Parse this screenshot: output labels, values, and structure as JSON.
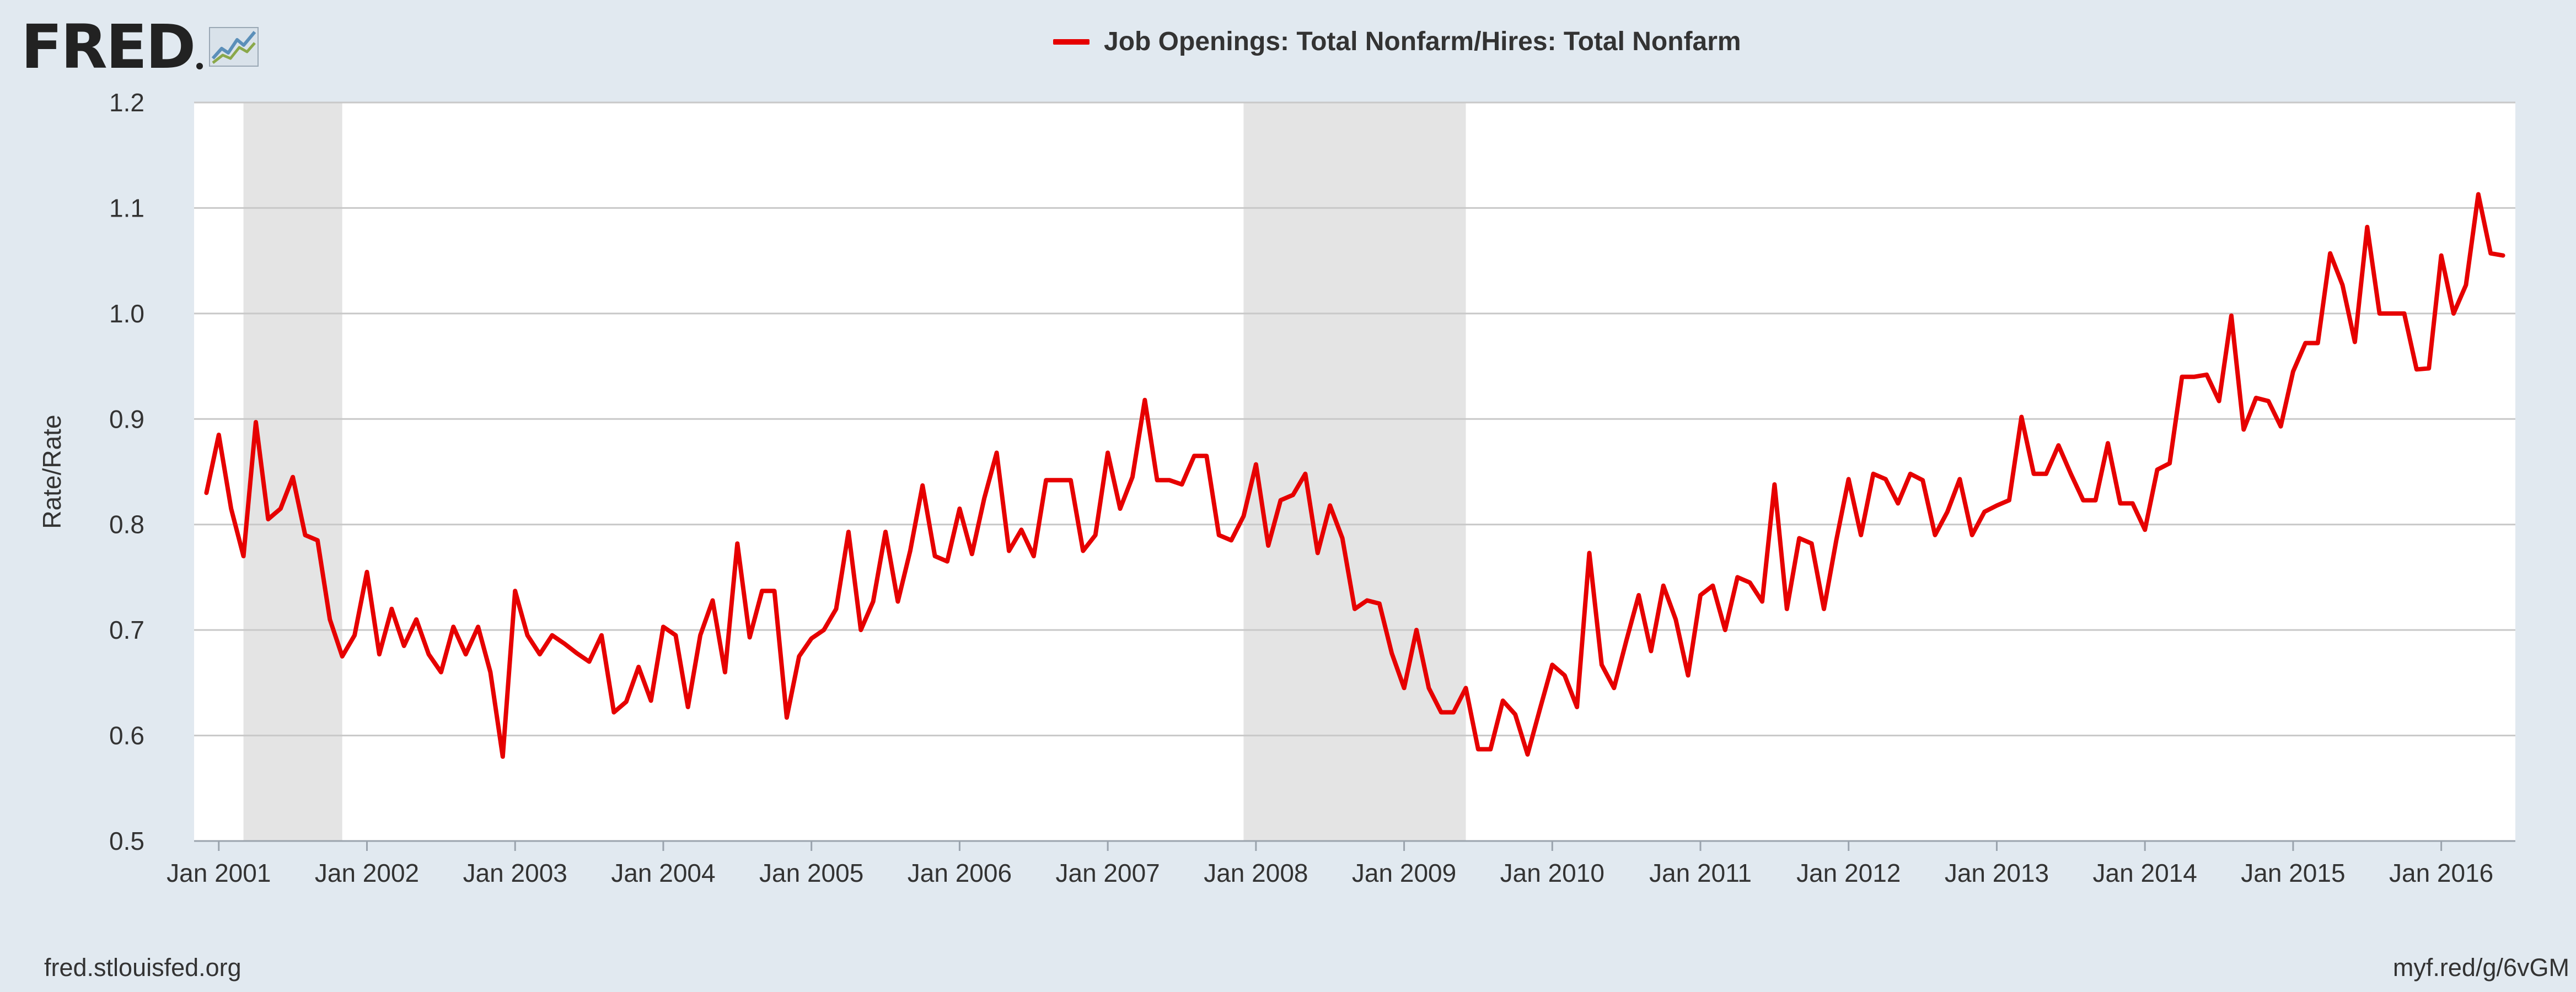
{
  "branding": {
    "logo_text": "FRED",
    "logo_icon": "chart-line-icon",
    "source_url": "fred.stlouisfed.org",
    "short_link": "myf.red/g/6vGM"
  },
  "colors": {
    "background": "#e1e9f0",
    "plot_background": "#ffffff",
    "series": "#e60000",
    "recession": "#e4e4e4",
    "grid": "#c8c8c8"
  },
  "chart_data": {
    "type": "line",
    "title": "",
    "xlabel": "",
    "ylabel": "Rate/Rate",
    "ylim": [
      0.5,
      1.2
    ],
    "yticks": [
      0.5,
      0.6,
      0.7,
      0.8,
      0.9,
      1.0,
      1.1,
      1.2
    ],
    "ytick_labels": [
      "0.5",
      "0.6",
      "0.7",
      "0.8",
      "0.9",
      "1.0",
      "1.1",
      "1.2"
    ],
    "xlim": [
      "2000-11",
      "2016-07"
    ],
    "xticks": [
      "2001-01",
      "2002-01",
      "2003-01",
      "2004-01",
      "2005-01",
      "2006-01",
      "2007-01",
      "2008-01",
      "2009-01",
      "2010-01",
      "2011-01",
      "2012-01",
      "2013-01",
      "2014-01",
      "2015-01",
      "2016-01"
    ],
    "xtick_labels": [
      "Jan 2001",
      "Jan 2002",
      "Jan 2003",
      "Jan 2004",
      "Jan 2005",
      "Jan 2006",
      "Jan 2007",
      "Jan 2008",
      "Jan 2009",
      "Jan 2010",
      "Jan 2011",
      "Jan 2012",
      "Jan 2013",
      "Jan 2014",
      "Jan 2015",
      "Jan 2016"
    ],
    "grid": true,
    "legend": "top-center",
    "recessions": [
      {
        "start": "2001-03",
        "end": "2001-11"
      },
      {
        "start": "2007-12",
        "end": "2009-06"
      }
    ],
    "series": [
      {
        "name": "Job Openings: Total Nonfarm/Hires: Total Nonfarm",
        "start": "2000-12",
        "frequency": "monthly",
        "values": [
          0.83,
          0.885,
          0.815,
          0.77,
          0.897,
          0.805,
          0.815,
          0.845,
          0.79,
          0.785,
          0.71,
          0.675,
          0.695,
          0.755,
          0.677,
          0.72,
          0.685,
          0.71,
          0.677,
          0.66,
          0.703,
          0.677,
          0.703,
          0.66,
          0.58,
          0.737,
          0.695,
          0.677,
          0.695,
          0.687,
          0.678,
          0.67,
          0.695,
          0.622,
          0.632,
          0.665,
          0.633,
          0.703,
          0.695,
          0.627,
          0.695,
          0.728,
          0.66,
          0.782,
          0.693,
          0.737,
          0.737,
          0.617,
          0.675,
          0.692,
          0.7,
          0.72,
          0.793,
          0.7,
          0.727,
          0.793,
          0.727,
          0.775,
          0.837,
          0.77,
          0.765,
          0.815,
          0.772,
          0.825,
          0.868,
          0.775,
          0.795,
          0.77,
          0.842,
          0.842,
          0.842,
          0.775,
          0.79,
          0.868,
          0.815,
          0.845,
          0.918,
          0.842,
          0.842,
          0.838,
          0.865,
          0.865,
          0.79,
          0.785,
          0.808,
          0.857,
          0.78,
          0.823,
          0.828,
          0.848,
          0.773,
          0.818,
          0.787,
          0.72,
          0.728,
          0.725,
          0.678,
          0.645,
          0.7,
          0.645,
          0.622,
          0.622,
          0.645,
          0.587,
          0.587,
          0.633,
          0.62,
          0.582,
          0.625,
          0.667,
          0.657,
          0.627,
          0.773,
          0.667,
          0.645,
          0.69,
          0.733,
          0.68,
          0.742,
          0.71,
          0.657,
          0.733,
          0.742,
          0.7,
          0.75,
          0.745,
          0.727,
          0.838,
          0.72,
          0.787,
          0.782,
          0.72,
          0.785,
          0.843,
          0.79,
          0.848,
          0.843,
          0.82,
          0.848,
          0.842,
          0.79,
          0.812,
          0.843,
          0.79,
          0.812,
          0.818,
          0.823,
          0.902,
          0.848,
          0.848,
          0.875,
          0.848,
          0.823,
          0.823,
          0.877,
          0.82,
          0.82,
          0.795,
          0.852,
          0.858,
          0.94,
          0.94,
          0.942,
          0.917,
          0.998,
          0.89,
          0.92,
          0.917,
          0.893,
          0.945,
          0.972,
          0.972,
          1.057,
          1.027,
          0.973,
          1.082,
          1.0,
          1.0,
          1.0,
          0.947,
          0.948,
          1.055,
          1.0,
          1.027,
          1.113,
          1.057,
          1.055
        ]
      }
    ]
  }
}
